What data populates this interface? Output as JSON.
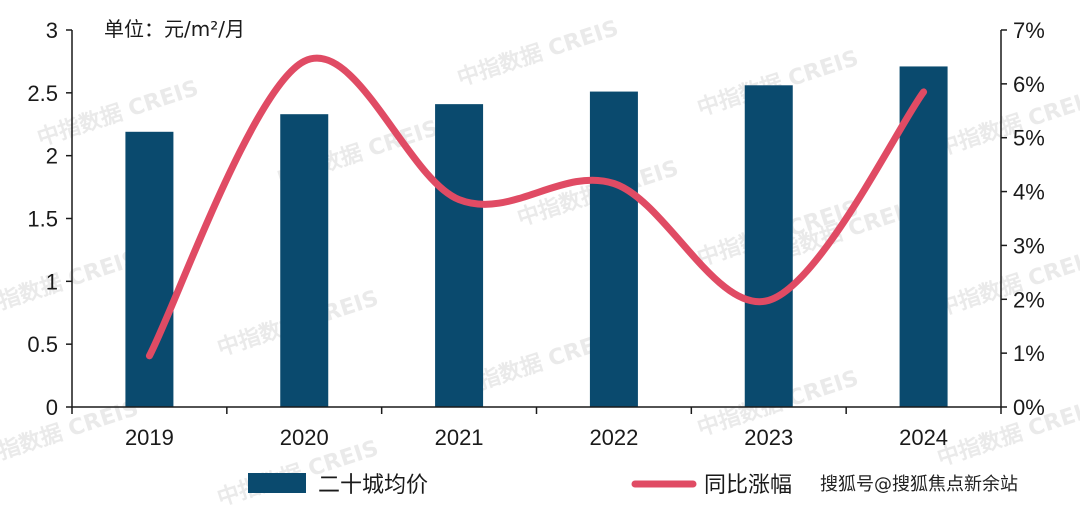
{
  "chart_data": {
    "type": "bar+line",
    "unit_label": "单位：元/m²/月",
    "categories": [
      "2019",
      "2020",
      "2021",
      "2022",
      "2023",
      "2024"
    ],
    "bar_series": {
      "name": "二十城均价",
      "values": [
        2.19,
        2.33,
        2.41,
        2.51,
        2.56,
        2.71
      ]
    },
    "line_series": {
      "name": "同比涨幅",
      "values": [
        0.95,
        6.42,
        3.85,
        4.15,
        1.98,
        5.85
      ]
    },
    "y_left": {
      "min": 0,
      "max": 3,
      "ticks": [
        "0",
        "0.5",
        "1",
        "1.5",
        "2",
        "2.5",
        "3"
      ]
    },
    "y_right": {
      "min": 0,
      "max": 7,
      "ticks": [
        "0%",
        "1%",
        "2%",
        "3%",
        "4%",
        "5%",
        "6%",
        "7%"
      ]
    },
    "grid": false,
    "legend_position": "bottom"
  },
  "colors": {
    "bar": "#0a4a6e",
    "line": "#e04b64",
    "axis": "#1a1a1a"
  },
  "watermark": "中指数据 CREIS",
  "credit": "搜狐号@搜狐焦点新余站"
}
